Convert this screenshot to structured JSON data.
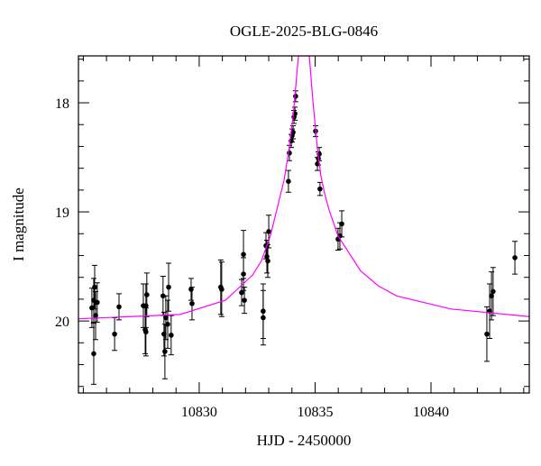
{
  "chart_data": {
    "type": "scatter",
    "title": "OGLE-2025-BLG-0846",
    "x_label": "HJD - 2450000",
    "y_label": "I magnitude",
    "xlim": [
      10824.79,
      10844.24
    ],
    "ylim": [
      20.66,
      17.57
    ],
    "xticks": [
      10830,
      10835,
      10840
    ],
    "yticks": [
      18,
      19,
      20
    ],
    "xminorticks": [
      10825,
      10826,
      10827,
      10828,
      10829,
      10831,
      10832,
      10833,
      10834,
      10836,
      10837,
      10838,
      10839,
      10841,
      10842,
      10843,
      10844
    ],
    "yminorticks": [
      17.6,
      17.8,
      18.2,
      18.4,
      18.6,
      18.8,
      19.2,
      19.4,
      19.6,
      19.8,
      20.2,
      20.4,
      20.6
    ],
    "series": [
      {
        "type": "errorbar",
        "color": "#000000",
        "x": [
          10825.37,
          10825.45,
          10825.49,
          10825.45,
          10825.53,
          10825.6,
          10826.35,
          10826.54,
          10827.59,
          10827.7,
          10827.74,
          10827.67,
          10827.7,
          10828.44,
          10828.48,
          10828.56,
          10828.52,
          10828.64,
          10828.68,
          10828.79,
          10829.65,
          10829.69,
          10830.93,
          10830.97,
          10831.83,
          10831.91,
          10831.91,
          10831.95,
          10832.76,
          10832.76,
          10832.88,
          10832.92,
          10832.96,
          10833.0,
          10833.85,
          10833.89,
          10833.97,
          10834.01,
          10834.05,
          10834.09,
          10834.13,
          10834.16,
          10835.02,
          10835.1,
          10835.14,
          10835.18,
          10835.21,
          10835.99,
          10836.07,
          10836.15,
          10842.41,
          10842.53,
          10842.61,
          10842.68,
          10843.62
        ],
        "values": [
          19.88,
          19.81,
          19.69,
          20.3,
          19.95,
          19.83,
          20.12,
          19.87,
          19.86,
          19.86,
          19.76,
          20.08,
          20.1,
          19.77,
          20.12,
          19.97,
          20.28,
          20.03,
          19.69,
          20.13,
          19.71,
          19.84,
          19.69,
          19.71,
          19.74,
          19.39,
          19.57,
          19.81,
          19.91,
          19.97,
          19.31,
          19.41,
          19.45,
          19.18,
          18.72,
          18.46,
          18.35,
          18.3,
          18.27,
          18.13,
          18.1,
          17.94,
          18.26,
          18.56,
          18.51,
          18.47,
          18.79,
          19.25,
          19.22,
          19.11,
          20.12,
          19.91,
          19.77,
          19.73,
          19.42
        ],
        "errors": [
          0.18,
          0.2,
          0.2,
          0.28,
          0.22,
          0.18,
          0.15,
          0.12,
          0.2,
          0.2,
          0.2,
          0.22,
          0.22,
          0.18,
          0.2,
          0.2,
          0.25,
          0.22,
          0.22,
          0.18,
          0.1,
          0.15,
          0.25,
          0.25,
          0.12,
          0.22,
          0.15,
          0.12,
          0.25,
          0.25,
          0.12,
          0.15,
          0.15,
          0.15,
          0.1,
          0.07,
          0.06,
          0.06,
          0.06,
          0.06,
          0.06,
          0.05,
          0.05,
          0.06,
          0.06,
          0.06,
          0.06,
          0.1,
          0.12,
          0.12,
          0.25,
          0.25,
          0.22,
          0.22,
          0.15
        ]
      },
      {
        "type": "line",
        "color": "#ff00ff",
        "x": [
          10824.79,
          10829.18,
          10831.13,
          10832.3,
          10832.68,
          10833.07,
          10833.66,
          10833.85,
          10834.05,
          10834.28,
          10834.75,
          10834.9,
          10835.1,
          10835.25,
          10835.41,
          10835.6,
          10835.99,
          10836.96,
          10837.74,
          10838.52,
          10840.86,
          10844.24
        ],
        "values": [
          19.98,
          19.94,
          19.81,
          19.58,
          19.45,
          19.22,
          18.71,
          18.46,
          18.13,
          17.57,
          17.57,
          17.97,
          18.42,
          18.67,
          18.83,
          18.98,
          19.22,
          19.54,
          19.68,
          19.77,
          19.89,
          19.96
        ]
      }
    ]
  }
}
